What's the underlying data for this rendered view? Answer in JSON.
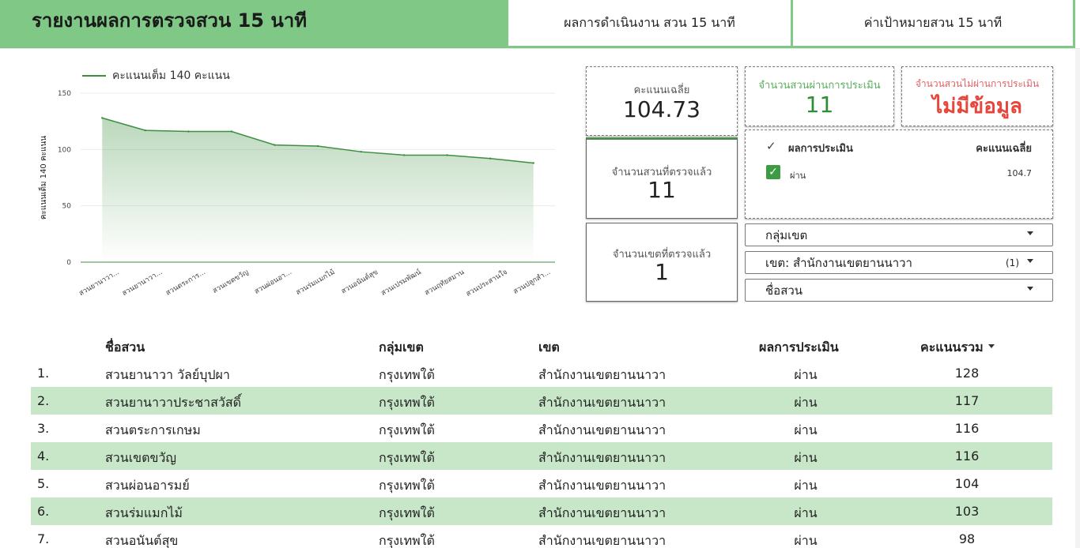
{
  "header": {
    "title": "รายงานผลการตรวจสวน 15 นาที",
    "tabs": [
      {
        "label": "ผลการดำเนินงาน สวน 15 นาที"
      },
      {
        "label": "ค่าเป้าหมายสวน 15 นาที"
      }
    ]
  },
  "chart_data": {
    "type": "area",
    "legend": "คะแนนเต็ม 140 คะแนน",
    "ylabel": "คะแนนเต็ม 140 คะแนน",
    "xlabel": "",
    "ylim": [
      0,
      150
    ],
    "yticks": [
      0,
      50,
      100,
      150
    ],
    "categories": [
      "สวนยานาวา...",
      "สวนยานาวา...",
      "สวนตระการ...",
      "สวนเขตขวัญ",
      "สวนผ่อนอา...",
      "สวนร่มแมกไม้",
      "สวนอนันต์สุข",
      "สวนเปรมพัฒน์",
      "สวนฤทัยสมาน",
      "สวนประสานใจ",
      "สวนปลูกสำ..."
    ],
    "values": [
      128,
      117,
      116,
      116,
      104,
      103,
      98,
      95,
      95,
      92,
      88
    ],
    "line_color": "#3d8f3f"
  },
  "scorecards": {
    "avg_label": "คะแนนเฉลี่ย",
    "avg_value": "104.73",
    "pass_label": "จำนวนสวนผ่านการประเมิน",
    "pass_value": "11",
    "fail_label": "จำนวนสวนไม่ผ่านการประเมิน",
    "fail_value": "ไม่มีข้อมูล",
    "parks_label": "จำนวนสวนที่ตรวจแล้ว",
    "parks_value": "11",
    "districts_label": "จำนวนเขตที่ตรวจแล้ว",
    "districts_value": "1"
  },
  "mini_table": {
    "header_result": "ผลการประเมิน",
    "header_avg": "คะแนนเฉลี่ย",
    "row_result": "ผ่าน",
    "row_avg": "104.7"
  },
  "filters": {
    "group": "กลุ่มเขต",
    "district": "เขต: สำนักงานเขตยานนาวา",
    "district_count": "(1)",
    "park": "ชื่อสวน"
  },
  "table": {
    "headers": {
      "name": "ชื่อสวน",
      "group": "กลุ่มเขต",
      "district": "เขต",
      "result": "ผลการประเมิน",
      "score": "คะแนนรวม"
    },
    "rows": [
      {
        "no": "1.",
        "name": "สวนยานาวา วัลย์บุปผา",
        "group": "กรุงเทพใต้",
        "district": "สำนักงานเขตยานนาวา",
        "result": "ผ่าน",
        "score": "128"
      },
      {
        "no": "2.",
        "name": "สวนยานาวาประชาสวัสดิ์",
        "group": "กรุงเทพใต้",
        "district": "สำนักงานเขตยานนาวา",
        "result": "ผ่าน",
        "score": "117"
      },
      {
        "no": "3.",
        "name": "สวนตระการเกษม",
        "group": "กรุงเทพใต้",
        "district": "สำนักงานเขตยานนาวา",
        "result": "ผ่าน",
        "score": "116"
      },
      {
        "no": "4.",
        "name": "สวนเขตขวัญ",
        "group": "กรุงเทพใต้",
        "district": "สำนักงานเขตยานนาวา",
        "result": "ผ่าน",
        "score": "116"
      },
      {
        "no": "5.",
        "name": "สวนผ่อนอารมย์",
        "group": "กรุงเทพใต้",
        "district": "สำนักงานเขตยานนาวา",
        "result": "ผ่าน",
        "score": "104"
      },
      {
        "no": "6.",
        "name": "สวนร่มแมกไม้",
        "group": "กรุงเทพใต้",
        "district": "สำนักงานเขตยานนาวา",
        "result": "ผ่าน",
        "score": "103"
      },
      {
        "no": "7.",
        "name": "สวนอนันต์สุข",
        "group": "กรุงเทพใต้",
        "district": "สำนักงานเขตยานนาวา",
        "result": "ผ่าน",
        "score": "98"
      }
    ]
  },
  "colors": {
    "brand_green": "#7fc886",
    "row_alt": "#c7e7c8",
    "pass_green": "#2f8d34",
    "fail_red": "#e8453b"
  }
}
